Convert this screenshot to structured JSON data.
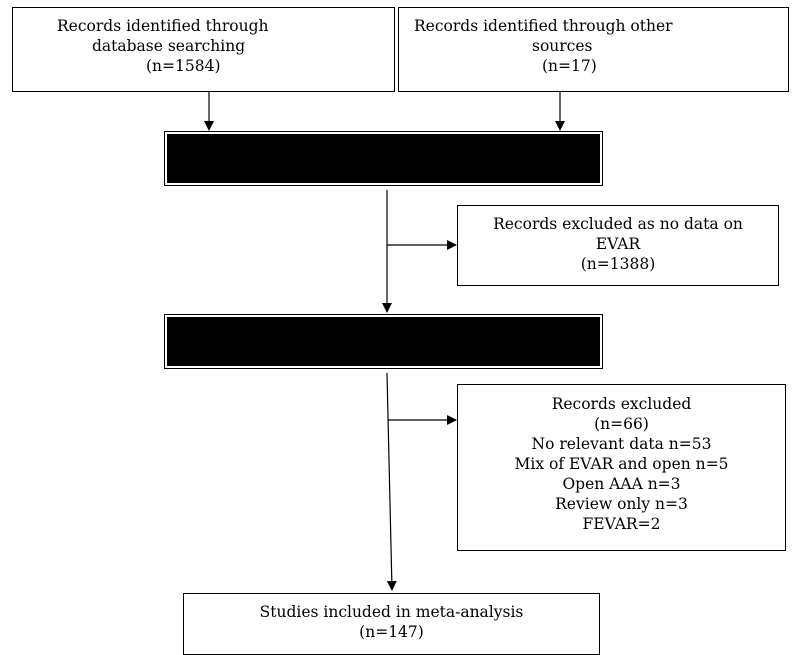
{
  "boxes": {
    "db_search": {
      "line1": "Records identified through",
      "line2": "database searching",
      "line3": "(n=1584)"
    },
    "other_sources": {
      "line1": "Records identified through other",
      "line2": "sources",
      "line3": "(n=17)"
    },
    "excluded_no_evar": {
      "line1": "Records excluded as no data on",
      "line2": "EVAR",
      "line3": "(n=1388)"
    },
    "excluded_reasons": {
      "line1": "Records excluded",
      "line2": "(n=66)",
      "line3": "No relevant data n=53",
      "line4": "Mix of EVAR and open n=5",
      "line5": "Open AAA n=3",
      "line6": "Review only n=3",
      "line7": "FEVAR=2"
    },
    "included": {
      "line1": "Studies included in meta-analysis",
      "line2": "(n=147)"
    }
  }
}
